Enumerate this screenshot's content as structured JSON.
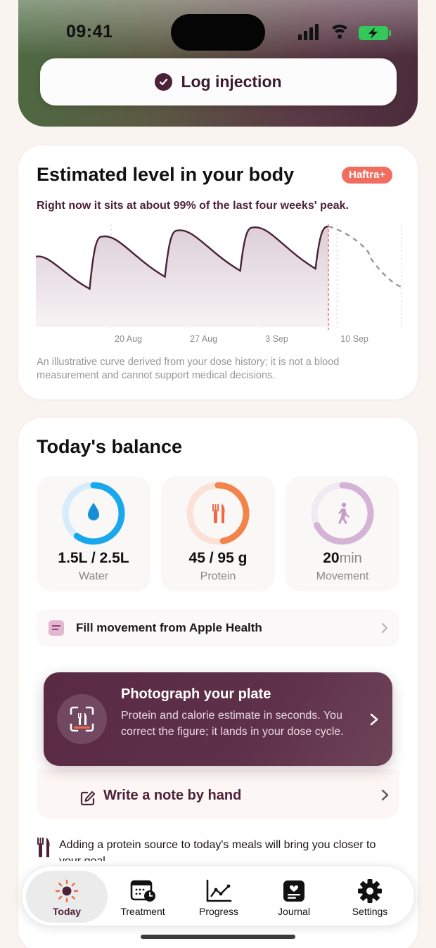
{
  "status": {
    "time": "09:41"
  },
  "header": {
    "log_button": "Log injection"
  },
  "level_card": {
    "title": "Estimated level in your body",
    "badge": "Haftra+",
    "subtitle": "Right now it sits at about 99% of the last four weeks' peak.",
    "disclaimer": "An illustrative curve derived from your dose history; it is not a blood measurement and cannot support medical decisions."
  },
  "chart_data": {
    "type": "line",
    "title": "",
    "xlabel": "",
    "ylabel": "",
    "x_ticks": [
      "20 Aug",
      "27 Aug",
      "3 Sep",
      "10 Sep"
    ],
    "grid": "vertical lines at ticks",
    "series": [
      {
        "style": "solid",
        "points": [
          {
            "day": 0,
            "level": 70
          },
          {
            "day": 5,
            "level": 38
          },
          {
            "day": 6.2,
            "level": 90
          },
          {
            "day": 12,
            "level": 50
          },
          {
            "day": 13.2,
            "level": 96
          },
          {
            "day": 19,
            "level": 56
          },
          {
            "day": 20.2,
            "level": 99
          },
          {
            "day": 26,
            "level": 58
          },
          {
            "day": 27.2,
            "level": 100
          }
        ]
      },
      {
        "style": "dashed",
        "points": [
          {
            "day": 27.2,
            "level": 100
          },
          {
            "day": 31,
            "level": 72
          },
          {
            "day": 34,
            "level": 40
          }
        ]
      }
    ],
    "today_marker": "10 Sep"
  },
  "balance": {
    "title": "Today's balance",
    "tiles": [
      {
        "value": "1.5L / 2.5L",
        "unit": "",
        "label": "Water",
        "progress": 0.6,
        "color": "#1aa8ec",
        "icon": "water-drop-icon"
      },
      {
        "value": "45 / 95 g",
        "unit": "",
        "label": "Protein",
        "progress": 0.47,
        "color": "#f2834a",
        "icon": "fork-knife-icon"
      },
      {
        "value": "20",
        "unit": "min",
        "label": "Movement",
        "progress": 0.68,
        "color": "#d5b3d6",
        "icon": "walking-icon"
      }
    ],
    "health_row": "Fill movement from Apple Health",
    "plate": {
      "title": "Photograph your plate",
      "description": "Protein and calorie estimate in seconds. You correct the figure; it lands in your dose cycle."
    },
    "note_row": "Write a note by hand",
    "tip": "Adding a protein source to today's meals will bring you closer to your goal."
  },
  "tabs": [
    {
      "label": "Today",
      "icon": "sun-icon"
    },
    {
      "label": "Treatment",
      "icon": "calendar-clock-icon"
    },
    {
      "label": "Progress",
      "icon": "chart-icon"
    },
    {
      "label": "Journal",
      "icon": "journal-icon"
    },
    {
      "label": "Settings",
      "icon": "gear-icon"
    }
  ]
}
